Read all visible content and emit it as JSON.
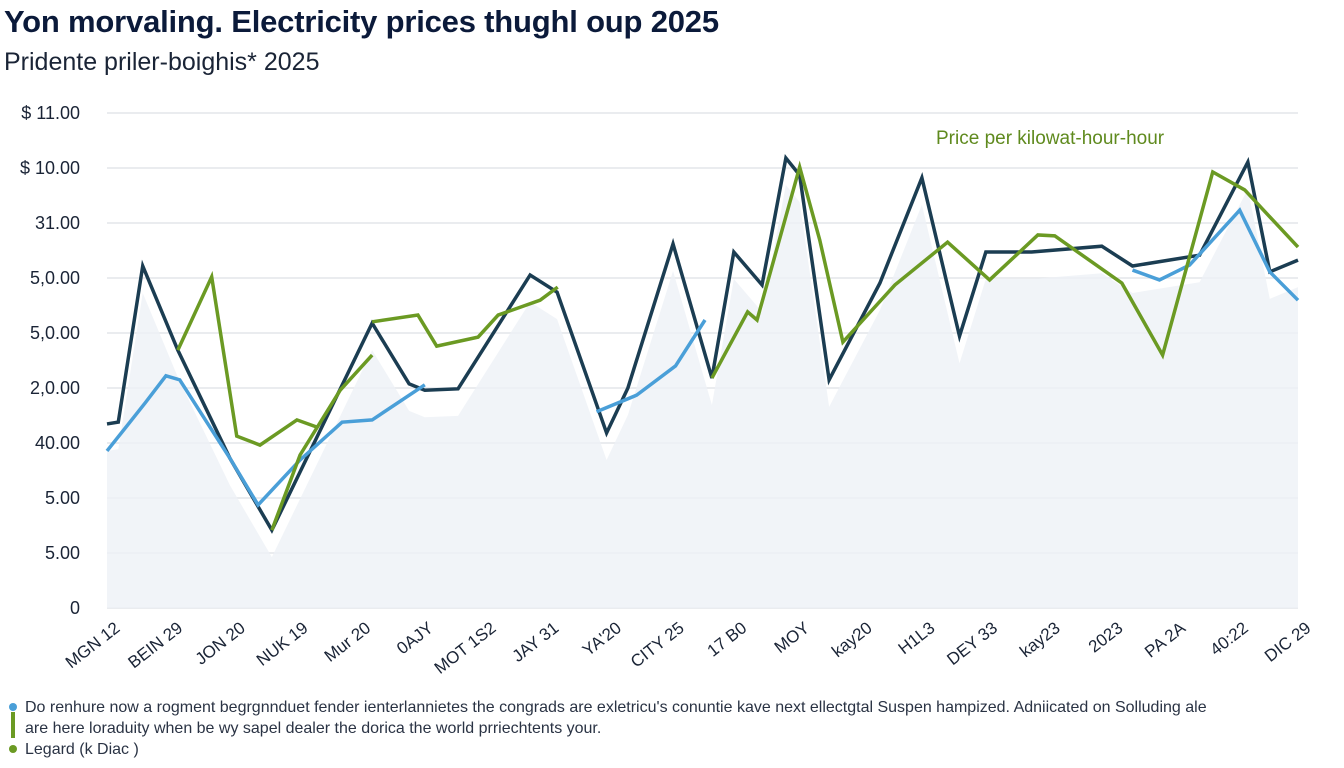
{
  "title": "Yon morvaling. Electricity prices thughl oup 2025",
  "subtitle": "Pridente priler-boighis* 2025",
  "annotation": "Price per kilowat-hour-hour",
  "footer": {
    "line1": "Do renhure now a rogment begrgnnduet fender ienterlannietes the congrads are exletricu's conuntie kave next ellectgtal Suspen hampized. Adniicated on Solluding ale",
    "line2": "are here loraduity when be wy sapel dealer the dorica the world prriechtents your.",
    "line3": "Legard (k Diac )"
  },
  "colors": {
    "navy": "#1b3d52",
    "green": "#6b9a23",
    "blue": "#4a9fd8",
    "grid": "#e3e6ea",
    "area": "#eef1f6"
  },
  "chart_data": {
    "type": "line",
    "title": "Yon morvaling. Electricity prices thughl oup 2025",
    "subtitle": "Pridente priler-boighis* 2025",
    "ylim": [
      0,
      11
    ],
    "y_tick_labels": [
      "0",
      "5.00",
      "5.00",
      "40.00",
      "2,0.00",
      "5,0.00",
      "5,0.00",
      "31.00",
      "$ 10.00",
      "$ 11.00"
    ],
    "categories": [
      "MGN 12",
      "BEIN 29",
      "JON 20",
      "NUK 19",
      "Mur 20",
      "0AJY",
      "MOT 1S2",
      "JAY 31",
      "YA'20",
      "CITY 25",
      "17 B0",
      "MOY",
      "kay20",
      "H1L3",
      "DEY 33",
      "kay23",
      "2023",
      "PA 2A",
      "40:22",
      "DIC 29"
    ],
    "grid": true,
    "series": [
      {
        "color": "#1b3d52",
        "segments": [
          [
            [
              0,
              4.09
            ],
            [
              0.18,
              4.13
            ],
            [
              0.57,
              7.6
            ],
            [
              1.13,
              5.73
            ],
            [
              1.96,
              3.33
            ],
            [
              2.63,
              1.73
            ],
            [
              4.23,
              6.33
            ],
            [
              4.82,
              4.98
            ],
            [
              5.07,
              4.84
            ],
            [
              5.6,
              4.87
            ],
            [
              6.75,
              7.4
            ],
            [
              7.18,
              7.02
            ],
            [
              7.97,
              3.89
            ],
            [
              8.31,
              4.89
            ],
            [
              9.03,
              8.09
            ],
            [
              9.65,
              5.11
            ],
            [
              10.0,
              7.91
            ],
            [
              10.45,
              7.18
            ],
            [
              10.83,
              10.0
            ],
            [
              11.05,
              9.62
            ],
            [
              11.52,
              5.07
            ],
            [
              12.33,
              7.22
            ],
            [
              13.0,
              9.56
            ],
            [
              13.6,
              6.04
            ],
            [
              14.02,
              7.91
            ],
            [
              14.75,
              7.91
            ],
            [
              15.87,
              8.04
            ],
            [
              16.36,
              7.6
            ],
            [
              17.43,
              7.84
            ],
            [
              18.2,
              9.91
            ],
            [
              18.55,
              7.47
            ],
            [
              19,
              7.73
            ]
          ]
        ]
      },
      {
        "color": "#6b9a23",
        "segments": [
          [
            [
              1.13,
              5.73
            ],
            [
              1.67,
              7.36
            ],
            [
              2.07,
              3.82
            ],
            [
              2.44,
              3.62
            ],
            [
              3.03,
              4.18
            ],
            [
              3.35,
              4.02
            ]
          ],
          [
            [
              2.63,
              1.73
            ],
            [
              3.08,
              3.4
            ],
            [
              3.72,
              4.84
            ],
            [
              4.23,
              5.62
            ]
          ],
          [
            [
              4.23,
              6.36
            ],
            [
              4.96,
              6.51
            ],
            [
              5.26,
              5.82
            ],
            [
              5.92,
              6.02
            ],
            [
              6.24,
              6.51
            ],
            [
              6.91,
              6.84
            ],
            [
              7.19,
              7.13
            ]
          ],
          [
            [
              9.65,
              5.11
            ],
            [
              10.22,
              6.58
            ],
            [
              10.37,
              6.4
            ],
            [
              11.05,
              9.8
            ],
            [
              11.37,
              8.18
            ],
            [
              11.74,
              5.91
            ],
            [
              12.57,
              7.18
            ],
            [
              13.41,
              8.13
            ],
            [
              14.08,
              7.29
            ],
            [
              14.85,
              8.29
            ],
            [
              15.12,
              8.27
            ],
            [
              16.19,
              7.22
            ],
            [
              16.84,
              5.62
            ],
            [
              17.64,
              9.69
            ],
            [
              18.15,
              9.29
            ],
            [
              19,
              8.02
            ]
          ]
        ]
      },
      {
        "color": "#4a9fd8",
        "segments": [
          [
            [
              0,
              3.49
            ],
            [
              0.61,
              4.56
            ],
            [
              0.94,
              5.16
            ],
            [
              1.16,
              5.07
            ],
            [
              1.96,
              3.33
            ],
            [
              2.41,
              2.29
            ],
            [
              3.08,
              3.29
            ],
            [
              3.75,
              4.13
            ],
            [
              4.23,
              4.18
            ],
            [
              5.07,
              4.96
            ]
          ],
          [
            [
              7.81,
              4.36
            ],
            [
              8.45,
              4.73
            ],
            [
              9.07,
              5.38
            ],
            [
              9.54,
              6.4
            ]
          ],
          [
            [
              16.36,
              7.51
            ],
            [
              16.79,
              7.29
            ],
            [
              17.27,
              7.62
            ],
            [
              18.07,
              8.84
            ],
            [
              18.55,
              7.47
            ],
            [
              19,
              6.84
            ]
          ]
        ]
      }
    ]
  }
}
